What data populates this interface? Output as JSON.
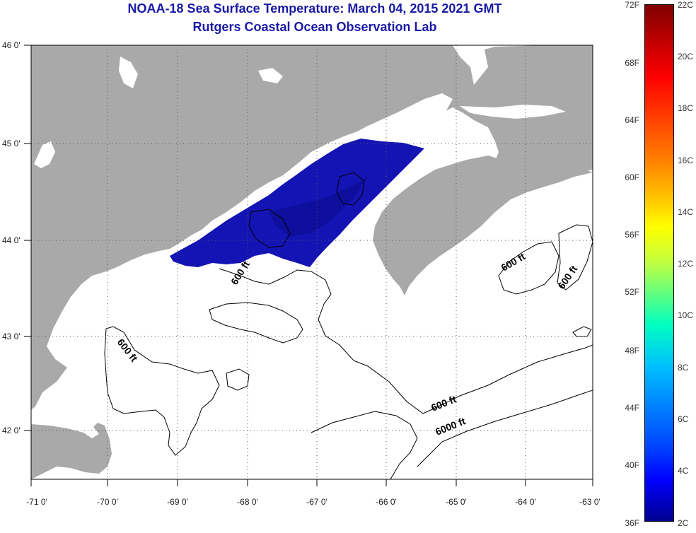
{
  "header": {
    "title_line1": "NOAA-18 Sea Surface Temperature:  March 04, 2015 2021 GMT",
    "title_line2": "Rutgers Coastal Ocean Observation Lab"
  },
  "map": {
    "lat_labels": [
      "46 0'",
      "45 0'",
      "44 0'",
      "43 0'",
      "42 0'"
    ],
    "lon_labels": [
      "-71 0'",
      "-70 0'",
      "-69 0'",
      "-68 0'",
      "-67 0'",
      "-66 0'",
      "-65 0'",
      "-64 0'",
      "-63 0'"
    ],
    "contour_labels": [
      "600 ft",
      "600 ft",
      "600 ft",
      "600 ft",
      "6000 ft",
      "600 ft"
    ],
    "colors": {
      "land": "#a9a9a9",
      "ocean": "#ffffff",
      "sst_cold": "#1414b4"
    }
  },
  "colorbar": {
    "fahrenheit_labels": [
      "72F",
      "68F",
      "64F",
      "60F",
      "56F",
      "52F",
      "48F",
      "44F",
      "40F",
      "36F"
    ],
    "celsius_labels": [
      "22C",
      "20C",
      "18C",
      "16C",
      "14C",
      "12C",
      "10C",
      "8C",
      "6C",
      "4C",
      "2C"
    ],
    "range_c": [
      2,
      22
    ],
    "range_f": [
      36,
      72
    ]
  }
}
